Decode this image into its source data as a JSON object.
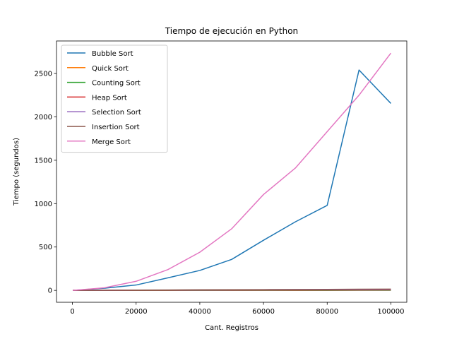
{
  "chart_data": {
    "type": "line",
    "title": "Tiempo de ejecución en Python",
    "xlabel": "Cant. Registros",
    "ylabel": "Tiempo (segundos)",
    "xlim": [
      -5000,
      105000
    ],
    "ylim": [
      -137,
      2875
    ],
    "xticks": [
      0,
      20000,
      40000,
      60000,
      80000,
      100000
    ],
    "xtick_labels": [
      "0",
      "20000",
      "40000",
      "60000",
      "80000",
      "100000"
    ],
    "yticks": [
      0,
      500,
      1000,
      1500,
      2000,
      2500
    ],
    "ytick_labels": [
      "0",
      "500",
      "1000",
      "1500",
      "2000",
      "2500"
    ],
    "grid": false,
    "legend_position": "top-left",
    "x": [
      100,
      10000,
      20000,
      30000,
      40000,
      50000,
      60000,
      70000,
      80000,
      90000,
      100000
    ],
    "series": [
      {
        "name": "Bubble Sort",
        "color": "#1f77b4",
        "values": [
          0,
          25,
          62,
          145,
          230,
          357,
          578,
          790,
          980,
          2540,
          2155
        ]
      },
      {
        "name": "Quick Sort",
        "color": "#ff7f0e",
        "values": [
          0,
          0.3,
          0.6,
          1,
          1.3,
          1.6,
          2,
          2.3,
          2.6,
          3,
          3.3
        ]
      },
      {
        "name": "Counting Sort",
        "color": "#2ca02c",
        "values": [
          0,
          0.1,
          0.2,
          0.3,
          0.4,
          0.5,
          0.6,
          0.7,
          0.8,
          0.9,
          1
        ]
      },
      {
        "name": "Heap Sort",
        "color": "#d62728",
        "values": [
          0,
          0.5,
          1,
          1.5,
          2,
          2.5,
          3,
          3.5,
          4,
          4.5,
          5
        ]
      },
      {
        "name": "Selection Sort",
        "color": "#9467bd",
        "values": [
          0,
          1,
          2,
          3,
          4,
          5,
          6,
          7,
          8,
          9,
          10
        ]
      },
      {
        "name": "Insertion Sort",
        "color": "#8c564b",
        "values": [
          0,
          1.5,
          3,
          4.5,
          6,
          7.5,
          9,
          10.5,
          12,
          13.5,
          15
        ]
      },
      {
        "name": "Merge Sort",
        "color": "#e377c2",
        "values": [
          0,
          30,
          105,
          240,
          440,
          710,
          1105,
          1410,
          1830,
          2250,
          2735
        ]
      }
    ]
  }
}
